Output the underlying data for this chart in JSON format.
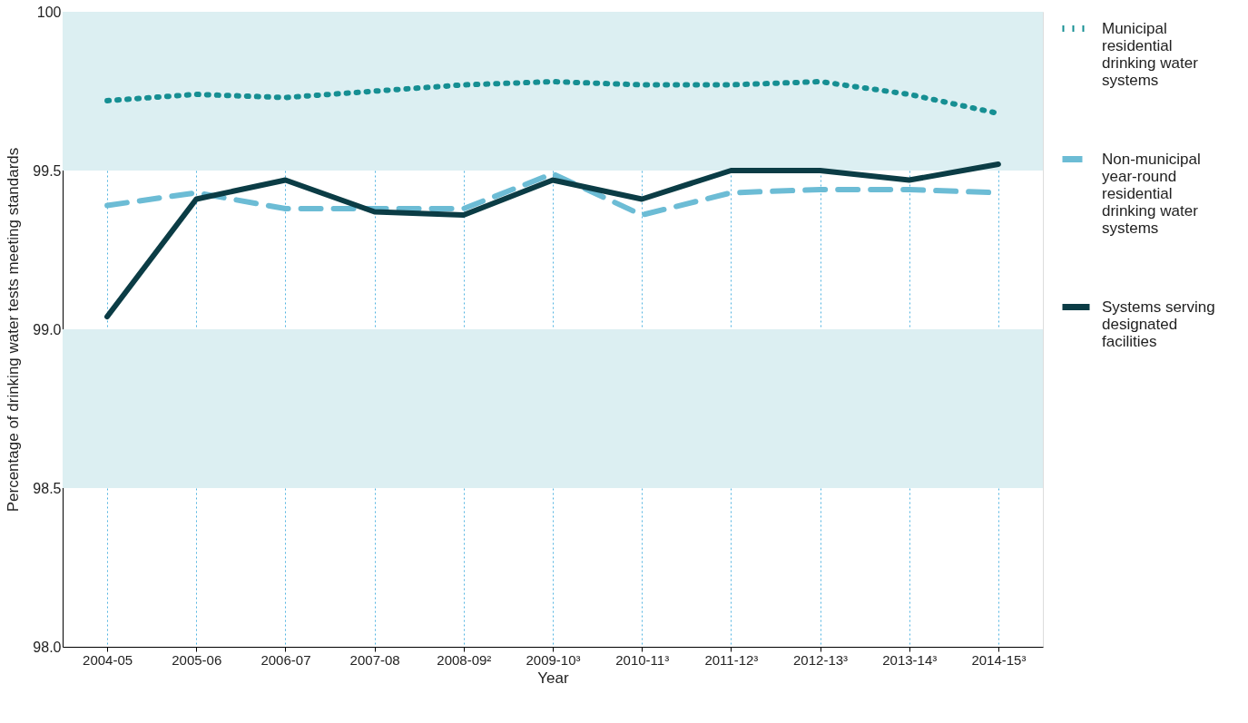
{
  "chart_data": {
    "type": "line",
    "xlabel": "Year",
    "ylabel": "Percentage of drinking water tests meeting standards",
    "categories": [
      "2004-05",
      "2005-06",
      "2006-07",
      "2007-08",
      "2008-09²",
      "2009-10³",
      "2010-11³",
      "2011-12³",
      "2012-13³",
      "2013-14³",
      "2014-15³"
    ],
    "series": [
      {
        "name": "Municipal residential drinking water systems",
        "color": "#168f93",
        "line_style": "dotted",
        "values": [
          99.72,
          99.74,
          99.73,
          99.75,
          99.77,
          99.78,
          99.77,
          99.77,
          99.78,
          99.74,
          99.68
        ]
      },
      {
        "name": "Non-municipal year-round residential drinking water systems",
        "color": "#6cbcd5",
        "line_style": "dashed",
        "values": [
          99.39,
          99.43,
          99.38,
          99.38,
          99.38,
          99.49,
          99.36,
          99.43,
          99.44,
          99.44,
          99.43
        ]
      },
      {
        "name": "Systems serving designated facilities",
        "color": "#0b3c45",
        "line_style": "solid",
        "values": [
          99.04,
          99.41,
          99.47,
          99.37,
          99.36,
          99.47,
          99.41,
          99.5,
          99.5,
          99.47,
          99.52
        ]
      }
    ],
    "ylim": [
      98,
      100
    ],
    "yticks": [
      {
        "value": 98,
        "label": "98.0"
      },
      {
        "value": 98.5,
        "label": "98.5"
      },
      {
        "value": 99,
        "label": "99.0"
      },
      {
        "value": 99.5,
        "label": "99.5"
      },
      100
    ],
    "bands": [
      {
        "axis": "y",
        "from": 98.5,
        "to": 99,
        "color": "#dceff2"
      },
      {
        "axis": "y",
        "from": 99.5,
        "to": 100,
        "color": "#dceff2"
      }
    ],
    "grid": "x",
    "legend": "right"
  }
}
